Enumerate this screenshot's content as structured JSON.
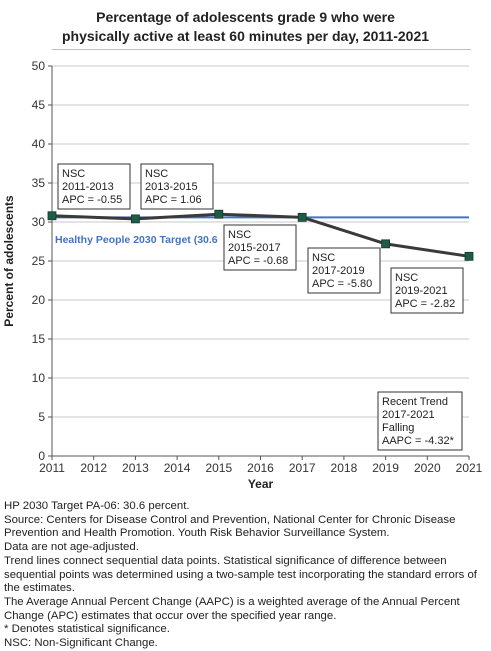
{
  "title_lines": [
    "Percentage of adolescents grade 9 who were",
    "physically active at least 60 minutes per day, 2011-2021"
  ],
  "chart_data": {
    "type": "line",
    "xlabel": "Year",
    "ylabel": "Percent of adolescents",
    "xlim": [
      2011,
      2021
    ],
    "ylim": [
      0,
      50
    ],
    "x_ticks": [
      2011,
      2012,
      2013,
      2014,
      2015,
      2016,
      2017,
      2018,
      2019,
      2020,
      2021
    ],
    "y_ticks": [
      0,
      5,
      10,
      15,
      20,
      25,
      30,
      35,
      40,
      45,
      50
    ],
    "grid": "horizontal",
    "series": [
      {
        "x": [
          2011,
          2013,
          2015,
          2017,
          2019,
          2021
        ],
        "values": [
          30.8,
          30.4,
          31.0,
          30.6,
          27.2,
          25.6
        ],
        "color": "#3a3a3a",
        "marker_color": "#1f5c45"
      }
    ],
    "target": {
      "value": 30.6,
      "label": "Healthy People 2030 Target (30.6",
      "color": "#4472c4"
    },
    "annotations": [
      {
        "lines": [
          "NSC",
          "2011-2013",
          "APC = -0.55"
        ]
      },
      {
        "lines": [
          "NSC",
          "2013-2015",
          "APC =  1.06"
        ]
      },
      {
        "lines": [
          "NSC",
          "2015-2017",
          "APC = -0.68"
        ]
      },
      {
        "lines": [
          "NSC",
          "2017-2019",
          "APC = -5.80"
        ]
      },
      {
        "lines": [
          "NSC",
          "2019-2021",
          "APC = -2.82"
        ]
      },
      {
        "lines": [
          "Recent Trend",
          "2017-2021",
          "Falling",
          "AAPC = -4.32*"
        ]
      }
    ]
  },
  "notes": [
    "HP 2030 Target PA-06: 30.6 percent.",
    "Source: Centers for Disease Control and Prevention, National Center for Chronic Disease Prevention and Health Promotion. Youth Risk Behavior Surveillance System.",
    "Data are not age-adjusted.",
    "Trend lines connect sequential data points. Statistical significance of difference between sequential points was determined using a two-sample test incorporating the standard errors of the estimates.",
    "The Average Annual Percent Change (AAPC) is a weighted average of the Annual Percent Change (APC) estimates that occur over the specified year range.",
    "* Denotes statistical significance.",
    "NSC: Non-Significant Change."
  ]
}
